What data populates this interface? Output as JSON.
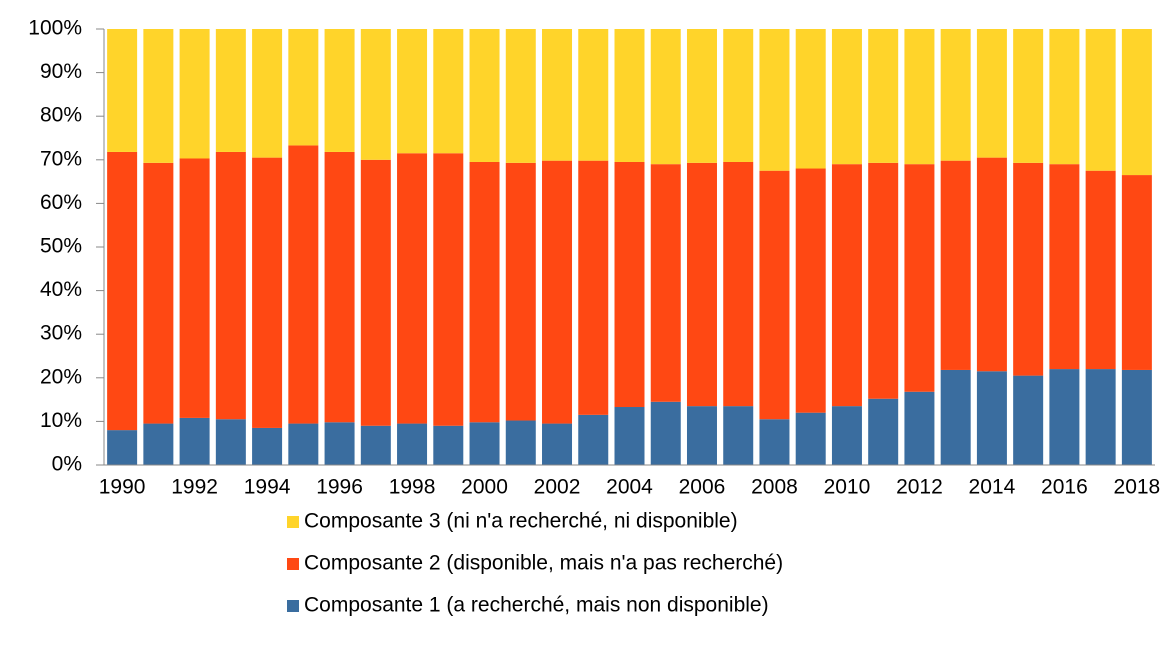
{
  "chart_data": {
    "type": "stacked_bar",
    "categories": [
      "1990",
      null,
      "1992",
      null,
      "1994",
      null,
      "1996",
      null,
      "1998",
      null,
      "2000",
      null,
      "2002",
      null,
      "2004",
      null,
      "2006",
      null,
      "2008",
      null,
      "2010",
      null,
      "2012",
      null,
      "2014",
      null,
      "2016",
      null,
      "2018"
    ],
    "series": [
      {
        "name": "Composante 1 (a recherché, mais non disponible)",
        "color": "#3a6d9f",
        "values": [
          8,
          9.5,
          10.8,
          10.5,
          8.5,
          9.5,
          9.8,
          9,
          9.5,
          9,
          9.8,
          10.2,
          9.5,
          11.5,
          13.3,
          14.5,
          13.5,
          13.5,
          10.5,
          12,
          13.5,
          15.2,
          16.8,
          21.8,
          21.5,
          20.5,
          22,
          22,
          21.8
        ]
      },
      {
        "name": "Composante 2 (disponible, mais n'a pas recherché)",
        "color": "#ff4813",
        "values": [
          63.8,
          59.8,
          59.5,
          61.3,
          62,
          63.8,
          62,
          61,
          62,
          62.5,
          59.7,
          59.1,
          60.3,
          58.3,
          56.2,
          54.5,
          55.8,
          56,
          57,
          56,
          55.5,
          54.1,
          52.2,
          48,
          49,
          48.8,
          47,
          45.5,
          44.7
        ]
      },
      {
        "name": "Composante 3 (ni n'a recherché, ni disponible)",
        "color": "#ffd42a",
        "values": [
          28.2,
          30.7,
          29.7,
          28.2,
          29.5,
          26.7,
          28.2,
          30,
          28.5,
          28.5,
          30.5,
          30.7,
          30.2,
          30.2,
          30.5,
          31,
          30.7,
          30.5,
          32.5,
          32,
          31,
          30.7,
          31,
          30.2,
          29.5,
          30.7,
          31,
          32.5,
          33.5
        ]
      }
    ],
    "ylim": [
      0,
      100
    ],
    "yticks": [
      {
        "value": 0,
        "label": "0%"
      },
      {
        "value": 10,
        "label": "10%"
      },
      {
        "value": 20,
        "label": "20%"
      },
      {
        "value": 30,
        "label": "30%"
      },
      {
        "value": 40,
        "label": "40%"
      },
      {
        "value": 50,
        "label": "50%"
      },
      {
        "value": 60,
        "label": "60%"
      },
      {
        "value": 70,
        "label": "70%"
      },
      {
        "value": 80,
        "label": "80%"
      },
      {
        "value": 90,
        "label": "90%"
      },
      {
        "value": 100,
        "label": "100%"
      }
    ],
    "legend": "bottom"
  }
}
